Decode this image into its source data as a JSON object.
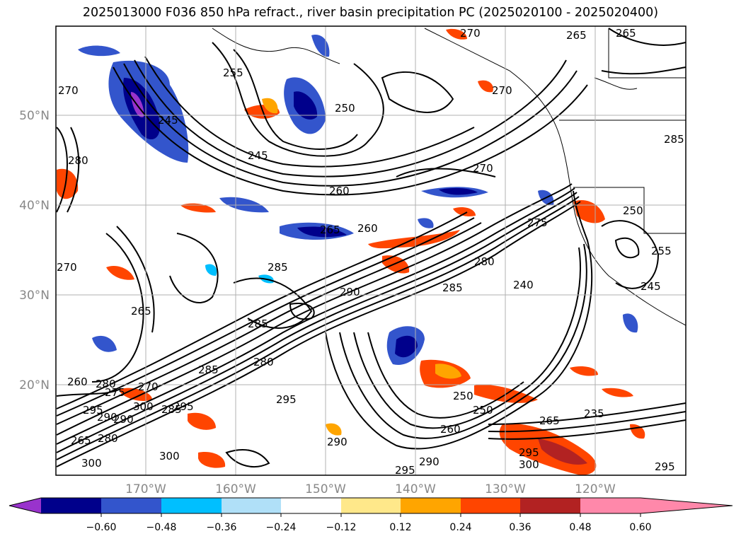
{
  "title": "2025013000 F036 850 hPa refract., river basin precipitation PC (2025020100 - 2025020400)",
  "lat_labels": [
    "50°N",
    "40°N",
    "30°N",
    "20°N"
  ],
  "lon_labels": [
    "170°W",
    "160°W",
    "150°W",
    "140°W",
    "130°W",
    "120°W"
  ],
  "colorbar": {
    "colors": [
      "#9933cc",
      "#00008b",
      "#3355cc",
      "#00bfff",
      "#b0e0f8",
      "#ffffff",
      "#ffe88a",
      "#ffa500",
      "#ff4500",
      "#b22222",
      "#ff88aa"
    ],
    "ticks": [
      "−0.60",
      "−0.48",
      "−0.36",
      "−0.24",
      "−0.12",
      "0.12",
      "0.24",
      "0.36",
      "0.48",
      "0.60"
    ]
  },
  "contour_labels": [
    "265",
    "270",
    "255",
    "245",
    "250",
    "245",
    "260",
    "270",
    "275",
    "250",
    "265",
    "260",
    "285",
    "290",
    "280",
    "285",
    "240",
    "255",
    "245",
    "285",
    "280",
    "295",
    "300",
    "270",
    "265",
    "285",
    "280",
    "275",
    "270",
    "295",
    "290",
    "300",
    "265",
    "250",
    "250",
    "235",
    "265",
    "260",
    "295",
    "300",
    "295",
    "290",
    "295",
    "300",
    "295",
    "285",
    "280",
    "290",
    "270",
    "280",
    "265",
    "270",
    "285",
    "290",
    "260"
  ]
}
